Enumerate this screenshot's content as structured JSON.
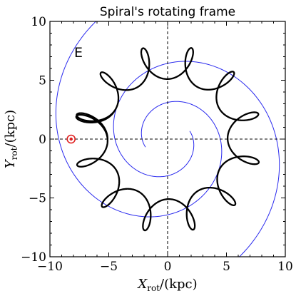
{
  "chart_data": {
    "type": "line",
    "title": "Spiral's rotating frame",
    "panel_label": "E",
    "xlabel": {
      "symbol": "X",
      "subscript": "rot",
      "unit": "/(kpc)"
    },
    "ylabel": {
      "symbol": "Y",
      "subscript": "rot",
      "unit": "/(kpc)"
    },
    "xlim": [
      -10,
      10
    ],
    "ylim": [
      -10,
      10
    ],
    "xticks": [
      -10,
      -5,
      0,
      5,
      10
    ],
    "yticks": [
      -10,
      -5,
      0,
      5,
      10
    ],
    "xtick_labels": [
      "−10",
      "−5",
      "0",
      "5",
      "10"
    ],
    "ytick_labels": [
      "−10",
      "−5",
      "0",
      "5",
      "10"
    ],
    "grid": false,
    "reference_lines": {
      "x": 0,
      "y": 0,
      "style": "dashed"
    },
    "marker": {
      "x": -8.2,
      "y": 0.0,
      "shape": "circle",
      "color": "#e02020"
    },
    "spiral_arms": {
      "color": "#2a2aee",
      "count": 2,
      "pitch_angle_deg": 13,
      "start_radius": 2.0,
      "end_radius": 12.5,
      "phase_deg": 200
    },
    "orbit": {
      "color": "#000000",
      "mean_radius": 6.55,
      "radial_amplitude": 1.45,
      "loops": 13,
      "revolutions": 1.08,
      "start_angle_deg": 180
    }
  },
  "colors": {
    "arm": "#2a2aee",
    "orbit": "#000000",
    "marker": "#e02020",
    "axes": "#000000"
  }
}
